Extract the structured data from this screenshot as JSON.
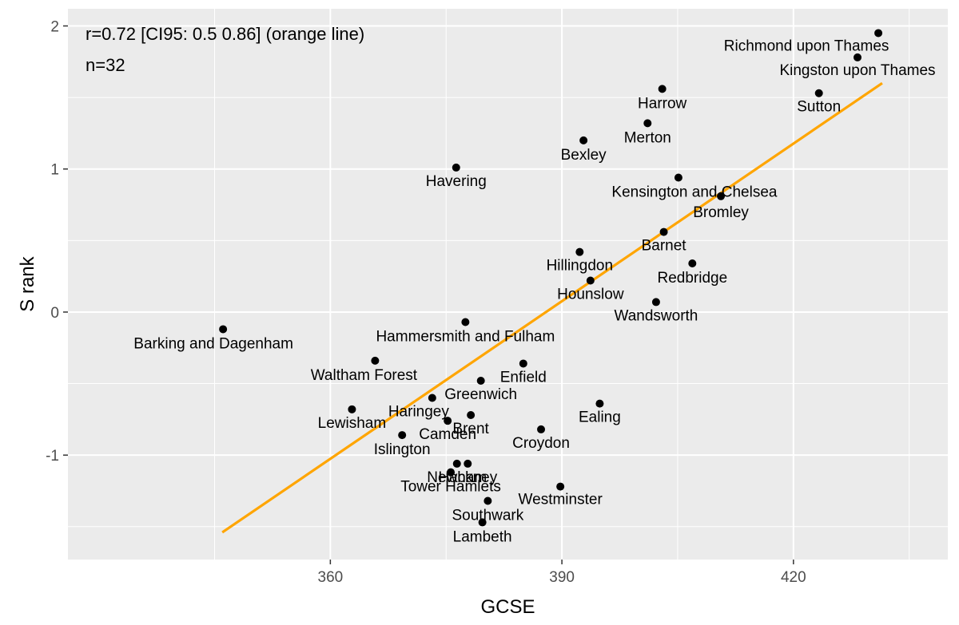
{
  "chart_data": {
    "type": "scatter",
    "title": "",
    "xlabel": "GCSE",
    "ylabel": "S rank",
    "xlim": [
      326,
      440
    ],
    "ylim": [
      -1.73,
      2.12
    ],
    "x_ticks": [
      360,
      390,
      420
    ],
    "x_tick_labels": [
      "360",
      "390",
      "420"
    ],
    "y_ticks": [
      -1,
      0,
      1,
      2
    ],
    "y_tick_labels": [
      "-1",
      "0",
      "1",
      "2"
    ],
    "grid": true,
    "annotations": [
      "r=0.72 [CI95: 0.5 0.86] (orange line)",
      "n=32"
    ],
    "fit_line": {
      "color": "#FFA500",
      "x": [
        346,
        431.5
      ],
      "y": [
        -1.54,
        1.6
      ]
    },
    "point_color": "#000000",
    "points": [
      {
        "label": "Richmond upon Thames",
        "x": 431,
        "y": 1.95
      },
      {
        "label": "Kingston upon Thames",
        "x": 428.3,
        "y": 1.78
      },
      {
        "label": "Sutton",
        "x": 423.3,
        "y": 1.53
      },
      {
        "label": "Harrow",
        "x": 403,
        "y": 1.56
      },
      {
        "label": "Merton",
        "x": 401.1,
        "y": 1.32
      },
      {
        "label": "Bexley",
        "x": 392.8,
        "y": 1.2
      },
      {
        "label": "Havering",
        "x": 376.3,
        "y": 1.01
      },
      {
        "label": "Kensington and Chelsea",
        "x": 405.1,
        "y": 0.94
      },
      {
        "label": "Bromley",
        "x": 410.6,
        "y": 0.81
      },
      {
        "label": "Barnet",
        "x": 403.2,
        "y": 0.56
      },
      {
        "label": "Hillingdon",
        "x": 392.3,
        "y": 0.42
      },
      {
        "label": "Redbridge",
        "x": 406.9,
        "y": 0.34
      },
      {
        "label": "Hounslow",
        "x": 393.7,
        "y": 0.22
      },
      {
        "label": "Wandsworth",
        "x": 402.2,
        "y": 0.07
      },
      {
        "label": "Barking and Dagenham",
        "x": 346.1,
        "y": -0.12
      },
      {
        "label": "Hammersmith and Fulham",
        "x": 377.5,
        "y": -0.07
      },
      {
        "label": "Waltham Forest",
        "x": 365.8,
        "y": -0.34
      },
      {
        "label": "Enfield",
        "x": 385,
        "y": -0.36
      },
      {
        "label": "Greenwich",
        "x": 379.5,
        "y": -0.48
      },
      {
        "label": "Haringey",
        "x": 373.2,
        "y": -0.6
      },
      {
        "label": "Lewisham",
        "x": 362.8,
        "y": -0.68
      },
      {
        "label": "Ealing",
        "x": 394.9,
        "y": -0.64
      },
      {
        "label": "Brent",
        "x": 378.2,
        "y": -0.72
      },
      {
        "label": "Camden",
        "x": 375.2,
        "y": -0.76
      },
      {
        "label": "Croydon",
        "x": 387.3,
        "y": -0.82
      },
      {
        "label": "Islington",
        "x": 369.3,
        "y": -0.86
      },
      {
        "label": "Newham",
        "x": 376.4,
        "y": -1.06
      },
      {
        "label": "Hackney",
        "x": 377.8,
        "y": -1.06
      },
      {
        "label": "Tower Hamlets",
        "x": 375.6,
        "y": -1.12
      },
      {
        "label": "Westminster",
        "x": 389.8,
        "y": -1.22
      },
      {
        "label": "Southwark",
        "x": 380.4,
        "y": -1.32
      },
      {
        "label": "Lambeth",
        "x": 379.7,
        "y": -1.47
      }
    ]
  }
}
